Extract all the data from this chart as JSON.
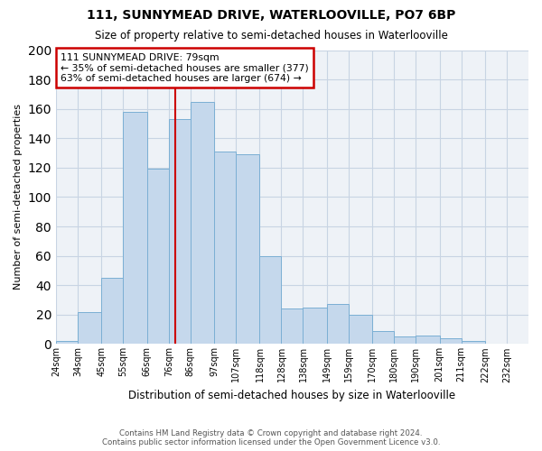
{
  "title": "111, SUNNYMEAD DRIVE, WATERLOOVILLE, PO7 6BP",
  "subtitle": "Size of property relative to semi-detached houses in Waterlooville",
  "xlabel": "Distribution of semi-detached houses by size in Waterlooville",
  "ylabel": "Number of semi-detached properties",
  "bin_labels": [
    "24sqm",
    "34sqm",
    "45sqm",
    "55sqm",
    "66sqm",
    "76sqm",
    "86sqm",
    "97sqm",
    "107sqm",
    "118sqm",
    "128sqm",
    "138sqm",
    "149sqm",
    "159sqm",
    "170sqm",
    "180sqm",
    "190sqm",
    "201sqm",
    "211sqm",
    "222sqm",
    "232sqm"
  ],
  "bin_edges": [
    24,
    34,
    45,
    55,
    66,
    76,
    86,
    97,
    107,
    118,
    128,
    138,
    149,
    159,
    170,
    180,
    190,
    201,
    211,
    222,
    232
  ],
  "values": [
    2,
    22,
    45,
    158,
    119,
    153,
    165,
    131,
    129,
    60,
    24,
    25,
    27,
    20,
    9,
    5,
    6,
    4,
    2,
    0
  ],
  "property_value": 79,
  "property_label": "111 SUNNYMEAD DRIVE: 79sqm",
  "pct_smaller": 35,
  "n_smaller": 377,
  "pct_larger": 63,
  "n_larger": 674,
  "bar_color": "#c5d8ec",
  "bar_edge_color": "#7bafd4",
  "vline_color": "#cc0000",
  "box_edge_color": "#cc0000",
  "ylim": [
    0,
    200
  ],
  "yticks": [
    0,
    20,
    40,
    60,
    80,
    100,
    120,
    140,
    160,
    180,
    200
  ],
  "bg_color": "#eef2f7",
  "grid_color": "#c8d4e3",
  "footer1": "Contains HM Land Registry data © Crown copyright and database right 2024.",
  "footer2": "Contains public sector information licensed under the Open Government Licence v3.0."
}
